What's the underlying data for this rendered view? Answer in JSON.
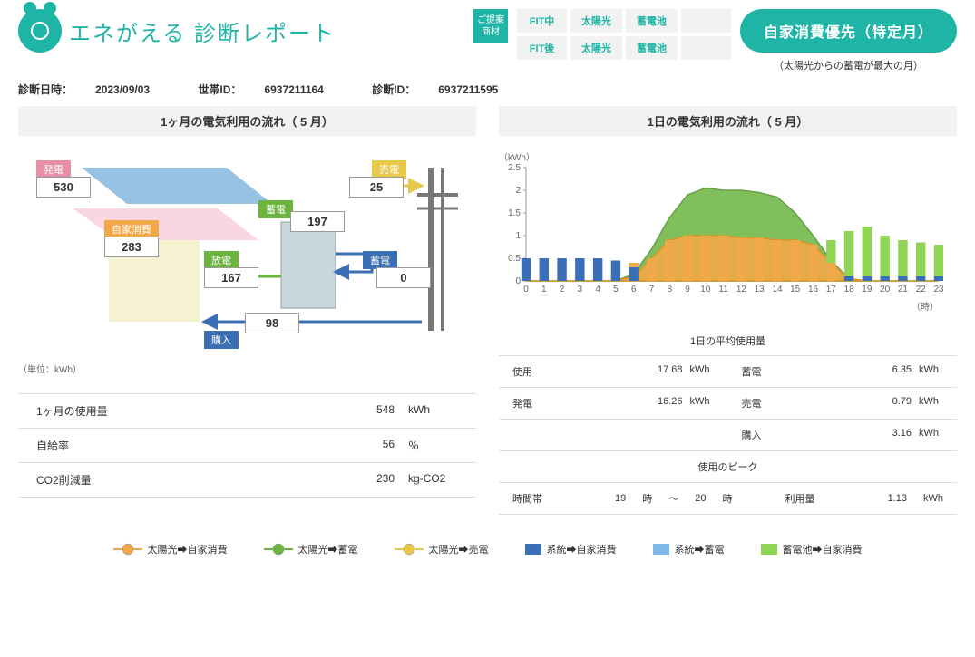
{
  "brand": {
    "kana": "エネがえる",
    "rest": " 診断レポート"
  },
  "meta": {
    "date_label": "診断日時：",
    "date": "2023/09/03",
    "household_label": "世帯ID：",
    "household": "6937211164",
    "diag_label": "診断ID：",
    "diag": "6937211595"
  },
  "teian": "ご提案\n商材",
  "fit": {
    "rows": [
      {
        "label": "FIT中",
        "solar": "太陽光",
        "battery": "蓄電池",
        "blank": ""
      },
      {
        "label": "FIT後",
        "solar": "太陽光",
        "battery": "蓄電池",
        "blank": ""
      }
    ]
  },
  "pill": "自家消費優先（特定月）",
  "pill_sub": "（太陽光からの蓄電が最大の月）",
  "left": {
    "title": "1ヶ月の電気利用の流れ（ 5 月）",
    "unit_note": "（単位：kWh）",
    "labels": {
      "gen": "発電",
      "self": "自家消費",
      "discharge": "放電",
      "purchase": "購入",
      "charge": "蓄電",
      "sell": "売電",
      "charge2": "蓄電"
    },
    "values": {
      "gen": "530",
      "self": "283",
      "discharge": "167",
      "purchase": "98",
      "charge": "197",
      "sell": "25",
      "charge2": "0"
    },
    "colors": {
      "gen": "#e88fa8",
      "self": "#f0a848",
      "discharge": "#6bb53f",
      "purchase": "#3b6fb5",
      "charge": "#6bb53f",
      "sell": "#e8c848",
      "charge2": "#3b6fb5"
    },
    "stats": [
      {
        "label": "1ヶ月の使用量",
        "value": "548",
        "unit": "kWh"
      },
      {
        "label": "自給率",
        "value": "56",
        "unit": "％"
      },
      {
        "label": "CO2削減量",
        "value": "230",
        "unit": "kg-CO2"
      }
    ]
  },
  "right": {
    "title": "1日の電気利用の流れ（ 5 月）",
    "chart": {
      "y_unit": "（kWh）",
      "x_unit": "（時）",
      "ylim": [
        0,
        2.5
      ],
      "ytick_step": 0.5,
      "hours": [
        0,
        1,
        2,
        3,
        4,
        5,
        6,
        7,
        8,
        9,
        10,
        11,
        12,
        13,
        14,
        15,
        16,
        17,
        18,
        19,
        20,
        21,
        22,
        23
      ],
      "colors": {
        "solar_self": "#f0a848",
        "solar_self_line": "#e89020",
        "solar_charge": "#6bb53f",
        "solar_charge_line": "#4a9028",
        "solar_sell": "#e8c848",
        "grid_self": "#3b6fb5",
        "grid_charge": "#7db8e8",
        "batt_self": "#8fd454"
      },
      "area_charge": [
        0,
        0,
        0,
        0,
        0,
        0,
        0.15,
        0.7,
        1.4,
        1.9,
        2.05,
        2.0,
        2.0,
        1.95,
        1.85,
        1.5,
        1.0,
        0.45,
        0.05,
        0,
        0,
        0,
        0,
        0
      ],
      "area_self": [
        0,
        0,
        0,
        0,
        0,
        0,
        0.1,
        0.5,
        0.9,
        1.0,
        1.0,
        1.0,
        0.95,
        0.95,
        0.9,
        0.9,
        0.8,
        0.4,
        0.05,
        0,
        0,
        0,
        0,
        0
      ],
      "bars_grid_self": [
        0.5,
        0.5,
        0.5,
        0.5,
        0.5,
        0.45,
        0.3,
        0,
        0,
        0,
        0,
        0,
        0,
        0,
        0,
        0,
        0,
        0,
        0.1,
        0.1,
        0.1,
        0.1,
        0.1,
        0.1
      ],
      "bars_batt_self": [
        0,
        0,
        0,
        0,
        0,
        0,
        0,
        0,
        0,
        0,
        0,
        0,
        0,
        0,
        0,
        0,
        0,
        0.5,
        1.0,
        1.1,
        0.9,
        0.8,
        0.75,
        0.7
      ],
      "bars_solar_self": [
        0,
        0,
        0,
        0,
        0,
        0,
        0.1,
        0.5,
        0.9,
        1.0,
        1.0,
        1.0,
        0.95,
        0.95,
        0.9,
        0.9,
        0.8,
        0.4,
        0,
        0,
        0,
        0,
        0,
        0
      ]
    },
    "daily_title": "1日の平均使用量",
    "daily": [
      {
        "label": "使用",
        "value": "17.68",
        "unit": "kWh"
      },
      {
        "label": "蓄電",
        "value": "6.35",
        "unit": "kWh"
      },
      {
        "label": "発電",
        "value": "16.26",
        "unit": "kWh"
      },
      {
        "label": "売電",
        "value": "0.79",
        "unit": "kWh"
      },
      {
        "label": "",
        "value": "",
        "unit": ""
      },
      {
        "label": "購入",
        "value": "3.16",
        "unit": "kWh"
      }
    ],
    "peak_title": "使用のピーク",
    "peak": {
      "time_label": "時間帯",
      "from": "19",
      "h1": "時",
      "tilde": "〜",
      "to": "20",
      "h2": "時",
      "use_label": "利用量",
      "value": "1.13",
      "unit": "kWh"
    }
  },
  "legend": [
    {
      "type": "line",
      "color": "#f0a848",
      "label": "太陽光➡自家消費"
    },
    {
      "type": "line",
      "color": "#6bb53f",
      "label": "太陽光➡蓄電"
    },
    {
      "type": "line",
      "color": "#e8c848",
      "label": "太陽光➡売電"
    },
    {
      "type": "sq",
      "color": "#3b6fb5",
      "label": "系統➡自家消費"
    },
    {
      "type": "sq",
      "color": "#7db8e8",
      "label": "系統➡蓄電"
    },
    {
      "type": "sq",
      "color": "#8fd454",
      "label": "蓄電池➡自家消費"
    }
  ]
}
